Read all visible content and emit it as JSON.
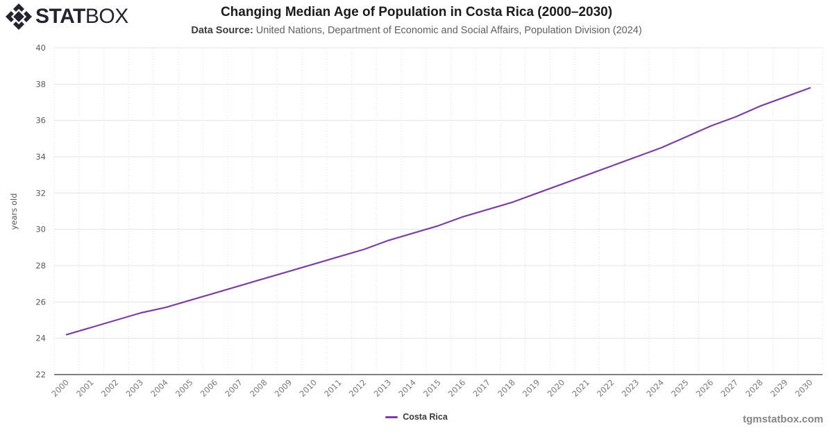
{
  "logo": {
    "stat": "STAT",
    "box": "BOX",
    "icon": "diamond-gem-icon",
    "color": "#23222e"
  },
  "header": {
    "title": "Changing Median Age of Population in Costa Rica (2000–2030)",
    "source_label": "Data Source:",
    "source_text": "United Nations, Department of Economic and Social Affairs, Population Division (2024)"
  },
  "legend": {
    "items": [
      {
        "label": "Costa Rica",
        "color": "#7b3fa0"
      }
    ]
  },
  "watermark": "tgmstatbox.com",
  "colors": {
    "line": "#7b3fa0",
    "h_grid": "#e3e3e3",
    "v_grid": "#d9d9d9",
    "axis_line": "#333333",
    "y_tick_text": "#5a5a5a",
    "x_tick_text": "#787878",
    "axis_title_text": "#5a5a5a"
  },
  "chart_data": {
    "type": "line",
    "title": "Changing Median Age of Population in Costa Rica (2000–2030)",
    "xlabel": "",
    "ylabel": "years old",
    "categories": [
      "2000",
      "2001",
      "2002",
      "2003",
      "2004",
      "2005",
      "2006",
      "2007",
      "2008",
      "2009",
      "2010",
      "2011",
      "2012",
      "2013",
      "2014",
      "2015",
      "2016",
      "2017",
      "2018",
      "2019",
      "2020",
      "2021",
      "2022",
      "2023",
      "2024",
      "2025",
      "2026",
      "2027",
      "2028",
      "2029",
      "2030"
    ],
    "series": [
      {
        "name": "Costa Rica",
        "color": "#7b3fa0",
        "values": [
          24.2,
          24.6,
          25.0,
          25.4,
          25.7,
          26.1,
          26.5,
          26.9,
          27.3,
          27.7,
          28.1,
          28.5,
          28.9,
          29.4,
          29.8,
          30.2,
          30.7,
          31.1,
          31.5,
          32.0,
          32.5,
          33.0,
          33.5,
          34.0,
          34.5,
          35.1,
          35.7,
          36.2,
          36.8,
          37.3,
          37.8
        ]
      }
    ],
    "ylim": [
      22,
      40
    ],
    "y_ticks": [
      22,
      24,
      26,
      28,
      30,
      32,
      34,
      36,
      38,
      40
    ],
    "grid": true,
    "h_gridlines": "solid",
    "v_gridlines": "dotted",
    "legend_position": "bottom-center"
  }
}
